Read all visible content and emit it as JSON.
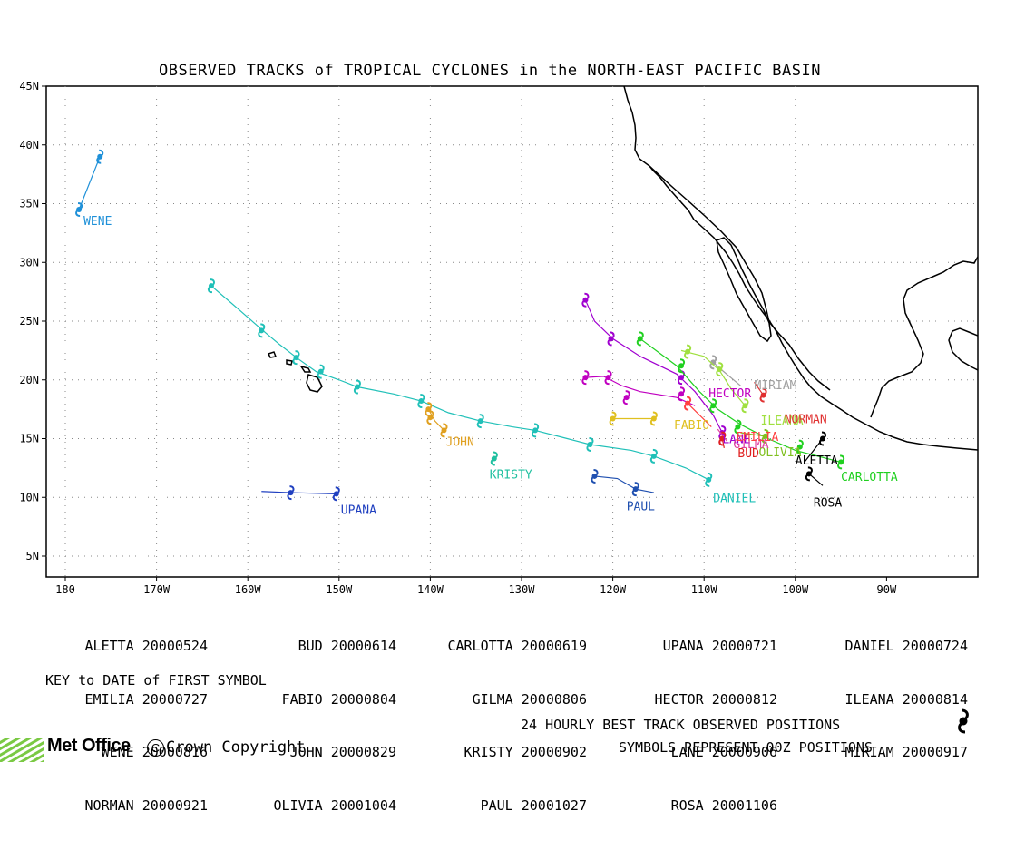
{
  "title": "OBSERVED TRACKS of TROPICAL CYCLONES in the NORTH-EAST PACIFIC BASIN",
  "lat_ticks": [
    "45N",
    "40N",
    "35N",
    "30N",
    "25N",
    "20N",
    "15N",
    "10N",
    "5N"
  ],
  "lon_ticks": [
    "180",
    "170W",
    "160W",
    "150W",
    "140W",
    "130W",
    "120W",
    "110W",
    "100W",
    "90W"
  ],
  "key_columns": [
    [
      "ALETTA 20000524",
      "EMILIA 20000727",
      "WENE 20000816",
      "NORMAN 20000921"
    ],
    [
      "BUD 20000614",
      "FABIO 20000804",
      "JOHN 20000829",
      "OLIVIA 20001004"
    ],
    [
      "CARLOTTA 20000619",
      "GILMA 20000806",
      "KRISTY 20000902",
      "PAUL 20001027"
    ],
    [
      "UPANA 20000721",
      "HECTOR 20000812",
      "LANE 20000906",
      "ROSA 20001106"
    ],
    [
      "DANIEL 20000724",
      "ILEANA 20000814",
      "MIRIAM 20000917"
    ]
  ],
  "key_label": "KEY to DATE of FIRST SYMBOL",
  "footer_line1": "24 HOURLY BEST TRACK OBSERVED POSITIONS",
  "footer_line2": "SYMBOLS REPRESENT 00Z POSITIONS",
  "logo_text": "Met Office",
  "copyright_text": "Crown Copyright",
  "storms": [
    {
      "name": "WENE",
      "color": "#1e90d8",
      "track": [
        [
          -178.5,
          34.5
        ],
        [
          -176.2,
          39.0
        ]
      ],
      "symbols": [
        [
          -178.5,
          34.5
        ],
        [
          -176.2,
          39.0
        ]
      ],
      "label": [
        -178,
        33.2
      ]
    },
    {
      "name": "DANIEL",
      "color": "#20c0b8",
      "track": [
        [
          -109.5,
          11.5
        ],
        [
          -112,
          12.5
        ],
        [
          -115.5,
          13.5
        ],
        [
          -118,
          14.0
        ],
        [
          -122.5,
          14.5
        ],
        [
          -125,
          15.0
        ],
        [
          -128.5,
          15.7
        ],
        [
          -131,
          16.0
        ],
        [
          -134.5,
          16.5
        ],
        [
          -138,
          17.2
        ],
        [
          -141,
          18.2
        ],
        [
          -144,
          18.8
        ],
        [
          -148,
          19.4
        ],
        [
          -150,
          20.0
        ],
        [
          -152.5,
          20.7
        ],
        [
          -154.5,
          21.8
        ],
        [
          -156.5,
          23.0
        ],
        [
          -158.5,
          24.3
        ],
        [
          -161,
          26.0
        ],
        [
          -164,
          28.0
        ]
      ],
      "symbols": [
        [
          -109.5,
          11.5
        ],
        [
          -115.5,
          13.5
        ],
        [
          -122.5,
          14.5
        ],
        [
          -128.5,
          15.7
        ],
        [
          -134.5,
          16.5
        ],
        [
          -141,
          18.2
        ],
        [
          -148,
          19.4
        ],
        [
          -152.0,
          20.7
        ],
        [
          -154.7,
          21.9
        ],
        [
          -158.5,
          24.2
        ],
        [
          -164,
          28.0
        ]
      ],
      "label": [
        -109,
        9.6
      ]
    },
    {
      "name": "UPANA",
      "color": "#2040c0",
      "track": [
        [
          -158.5,
          10.5
        ],
        [
          -155.3,
          10.4
        ],
        [
          -150.3,
          10.3
        ]
      ],
      "symbols": [
        [
          -155.3,
          10.4
        ],
        [
          -150.3,
          10.3
        ]
      ],
      "label": [
        -149.8,
        8.6
      ]
    },
    {
      "name": "PAUL",
      "color": "#2050b0",
      "track": [
        [
          -122,
          11.8
        ],
        [
          -119.5,
          11.6
        ],
        [
          -117.5,
          10.7
        ],
        [
          -115.5,
          10.4
        ]
      ],
      "symbols": [
        [
          -122,
          11.8
        ],
        [
          -117.5,
          10.7
        ]
      ],
      "label": [
        -118.5,
        8.9
      ]
    },
    {
      "name": "JOHN",
      "color": "#e0a020",
      "track": [
        [
          -140.2,
          17.5
        ],
        [
          -139.5,
          16.5
        ],
        [
          -138.5,
          15.7
        ]
      ],
      "symbols": [
        [
          -140.2,
          17.5
        ],
        [
          -140,
          16.8
        ],
        [
          -138.5,
          15.7
        ]
      ],
      "label": [
        -138.3,
        14.4
      ]
    },
    {
      "name": "KRISTY",
      "color": "#20c0a0",
      "track": [
        [
          -133,
          13.3
        ]
      ],
      "symbols": [
        [
          -133,
          13.3
        ]
      ],
      "label": [
        -133.5,
        11.6
      ]
    },
    {
      "name": "FABIO",
      "color": "#e0c020",
      "track": [
        [
          -120,
          16.7
        ],
        [
          -115.5,
          16.7
        ]
      ],
      "symbols": [
        [
          -120,
          16.7
        ],
        [
          -115.5,
          16.7
        ]
      ],
      "label": [
        -113.3,
        15.8
      ]
    },
    {
      "name": "HECTOR",
      "color": "#c000c0",
      "track": [
        [
          -123,
          20.2
        ],
        [
          -121,
          20.3
        ],
        [
          -119,
          19.5
        ],
        [
          -117,
          19.0
        ],
        [
          -113,
          18.5
        ],
        [
          -111,
          17.8
        ]
      ],
      "symbols": [
        [
          -123,
          20.2
        ],
        [
          -120.5,
          20.2
        ],
        [
          -118.5,
          18.5
        ],
        [
          -112.5,
          18.8
        ]
      ],
      "label": [
        -109.5,
        18.5
      ]
    },
    {
      "name": "LANE",
      "color": "#a000d0",
      "track": [
        [
          -123,
          26.8
        ],
        [
          -122,
          25
        ],
        [
          -120,
          23.5
        ],
        [
          -117,
          22
        ],
        [
          -113,
          20.5
        ],
        [
          -111,
          19
        ],
        [
          -109,
          17
        ],
        [
          -108,
          15.5
        ]
      ],
      "symbols": [
        [
          -123,
          26.8
        ],
        [
          -120.2,
          23.5
        ],
        [
          -112.5,
          20.2
        ],
        [
          -108,
          15.5
        ]
      ],
      "label": [
        -108,
        14.6
      ]
    },
    {
      "name": "MIRIAM",
      "color": "#a0a0a0",
      "track": [
        [
          -109,
          21.5
        ],
        [
          -108,
          20.8
        ],
        [
          -106,
          19.5
        ]
      ],
      "symbols": [
        [
          -109,
          21.5
        ]
      ],
      "label": [
        -104.5,
        19.2
      ]
    },
    {
      "name": "ILEANA",
      "color": "#a0e040",
      "track": [
        [
          -112.5,
          22.5
        ],
        [
          -110,
          22.0
        ],
        [
          -108.3,
          20.8
        ],
        [
          -107,
          19.2
        ],
        [
          -105.5,
          17.8
        ]
      ],
      "symbols": [
        [
          -111.8,
          22.4
        ],
        [
          -108.3,
          20.9
        ],
        [
          -105.5,
          17.8
        ]
      ],
      "label": [
        -103.8,
        16.2
      ]
    },
    {
      "name": "NORMAN",
      "color": "#e03030",
      "track": [
        [
          -104.5,
          19.8
        ],
        [
          -103.5,
          18.7
        ]
      ],
      "symbols": [
        [
          -103.5,
          18.7
        ]
      ],
      "label": [
        -101.2,
        16.3
      ]
    },
    {
      "name": "CARLOTTA",
      "color": "#20d020",
      "track": [
        [
          -117,
          23.5
        ],
        [
          -113,
          21.2
        ],
        [
          -110.5,
          19
        ],
        [
          -108.5,
          17.5
        ],
        [
          -106,
          16.2
        ],
        [
          -103,
          15
        ],
        [
          -100,
          14
        ],
        [
          -95,
          13
        ]
      ],
      "symbols": [
        [
          -117,
          23.5
        ],
        [
          -112.5,
          21.2
        ],
        [
          -109,
          17.8
        ],
        [
          -106.3,
          16.0
        ],
        [
          -99.5,
          14.3
        ],
        [
          -95,
          13
        ]
      ],
      "label": [
        -95,
        11.4
      ]
    },
    {
      "name": "OLIVIA",
      "color": "#80c020",
      "track": [
        [
          -106,
          15.5
        ],
        [
          -103.3,
          15.2
        ]
      ],
      "symbols": [
        [
          -103.3,
          15.2
        ]
      ],
      "label": [
        -104,
        13.5
      ]
    },
    {
      "name": "GILMA",
      "color": "#e040a0",
      "track": [
        [
          -108.5,
          15.8
        ],
        [
          -107.5,
          14.8
        ]
      ],
      "symbols": [
        [
          -108,
          15
        ]
      ],
      "label": [
        -106.8,
        14.2
      ]
    },
    {
      "name": "BUD",
      "color": "#e02020",
      "track": [
        [
          -108,
          15
        ],
        [
          -107.8,
          14.2
        ]
      ],
      "symbols": [
        [
          -108,
          15
        ]
      ],
      "label": [
        -106.3,
        13.4
      ]
    },
    {
      "name": "EMILIA",
      "color": "#ff4040",
      "track": [
        [
          -111.8,
          18
        ],
        [
          -110.5,
          17
        ],
        [
          -109.2,
          16
        ]
      ],
      "symbols": [
        [
          -111.8,
          18
        ]
      ],
      "label": [
        -106.5,
        14.8
      ]
    },
    {
      "name": "ALETTA",
      "color": "#000000",
      "track": [
        [
          -97,
          15
        ],
        [
          -98,
          14
        ],
        [
          -99,
          13
        ]
      ],
      "symbols": [
        [
          -97,
          15
        ]
      ],
      "label": [
        -100,
        12.8
      ]
    },
    {
      "name": "ROSA",
      "color": "#000000",
      "track": [
        [
          -98.5,
          12
        ],
        [
          -97,
          11
        ]
      ],
      "symbols": [
        [
          -98.5,
          12
        ]
      ],
      "label": [
        -98,
        9.2
      ]
    }
  ]
}
